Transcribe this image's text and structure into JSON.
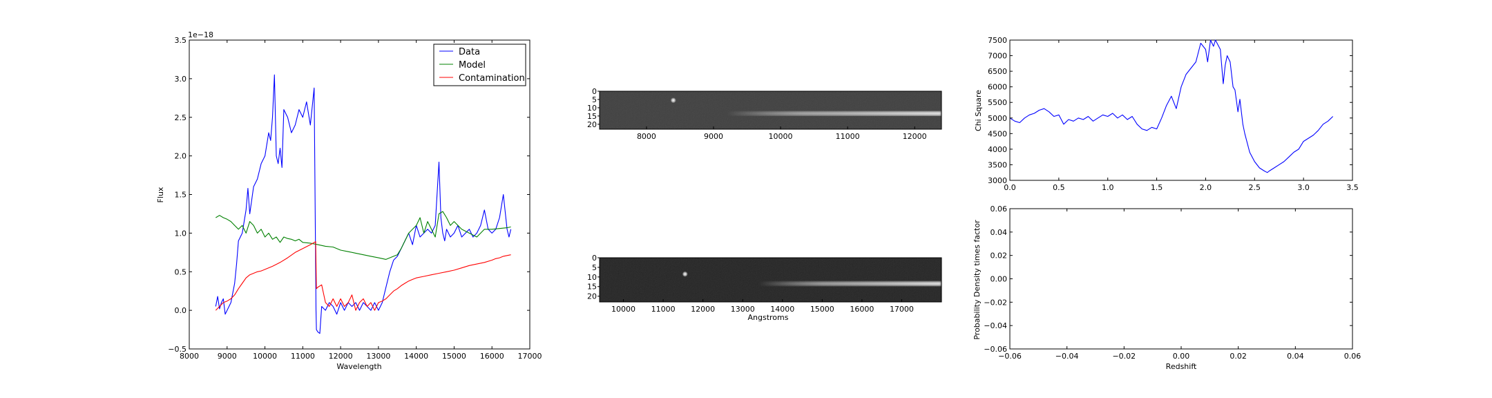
{
  "colors": {
    "data": "#0000ff",
    "model": "#008000",
    "contamination": "#ff0000",
    "axes": "#000000",
    "background": "#ffffff"
  },
  "chart_data": [
    {
      "id": "spectrum",
      "type": "line",
      "xlabel": "Wavelength",
      "ylabel": "Flux",
      "offset_text": "1e−18",
      "xlim": [
        8000,
        17000
      ],
      "ylim": [
        -0.5,
        3.5
      ],
      "xticks": [
        8000,
        9000,
        10000,
        11000,
        12000,
        13000,
        14000,
        15000,
        16000,
        17000
      ],
      "xtick_labels": [
        "8000",
        "9000",
        "10000",
        "11000",
        "12000",
        "13000",
        "14000",
        "15000",
        "16000",
        "17000"
      ],
      "yticks": [
        -0.5,
        0.0,
        0.5,
        1.0,
        1.5,
        2.0,
        2.5,
        3.0,
        3.5
      ],
      "ytick_labels": [
        "−0.5",
        "0.0",
        "0.5",
        "1.0",
        "1.5",
        "2.0",
        "2.5",
        "3.0",
        "3.5"
      ],
      "legend": {
        "placement": "top-right",
        "entries": [
          "Data",
          "Model",
          "Contamination"
        ]
      },
      "series": [
        {
          "name": "Data",
          "color": "#0000ff",
          "x": [
            8700,
            8750,
            8800,
            8850,
            8900,
            8950,
            9000,
            9100,
            9200,
            9250,
            9300,
            9400,
            9500,
            9550,
            9600,
            9700,
            9800,
            9900,
            10000,
            10100,
            10150,
            10200,
            10250,
            10300,
            10350,
            10400,
            10450,
            10500,
            10600,
            10700,
            10800,
            10900,
            11000,
            11100,
            11200,
            11300,
            11350,
            11360,
            11400,
            11450,
            11500,
            11600,
            11700,
            11800,
            11900,
            12000,
            12100,
            12200,
            12300,
            12400,
            12500,
            12600,
            12700,
            12800,
            12900,
            13000,
            13100,
            13200,
            13300,
            13400,
            13500,
            13600,
            13700,
            13800,
            13900,
            14000,
            14100,
            14200,
            14300,
            14400,
            14500,
            14600,
            14650,
            14700,
            14750,
            14800,
            14900,
            15000,
            15100,
            15200,
            15300,
            15400,
            15500,
            15600,
            15700,
            15800,
            15900,
            16000,
            16100,
            16200,
            16300,
            16400,
            16450,
            16500
          ],
          "y": [
            0.05,
            0.18,
            0.02,
            0.1,
            0.15,
            -0.05,
            0.0,
            0.1,
            0.35,
            0.6,
            0.9,
            1.0,
            1.3,
            1.58,
            1.25,
            1.6,
            1.7,
            1.9,
            2.0,
            2.3,
            2.2,
            2.5,
            3.05,
            2.0,
            1.9,
            2.1,
            1.85,
            2.6,
            2.5,
            2.3,
            2.4,
            2.6,
            2.5,
            2.7,
            2.4,
            2.88,
            0.0,
            -0.25,
            -0.28,
            -0.3,
            0.05,
            0.0,
            0.1,
            0.05,
            -0.05,
            0.1,
            0.0,
            0.1,
            0.05,
            0.1,
            0.0,
            0.1,
            0.05,
            0.0,
            0.1,
            0.0,
            0.1,
            0.3,
            0.5,
            0.65,
            0.7,
            0.8,
            0.9,
            1.0,
            0.85,
            1.1,
            0.95,
            1.0,
            1.05,
            1.0,
            1.1,
            1.92,
            1.2,
            1.0,
            0.9,
            1.05,
            0.95,
            1.0,
            1.1,
            0.95,
            1.0,
            1.05,
            0.95,
            1.0,
            1.1,
            1.3,
            1.05,
            1.0,
            1.05,
            1.2,
            1.5,
            1.05,
            0.95,
            1.05
          ]
        },
        {
          "name": "Model",
          "color": "#008000",
          "x": [
            8700,
            8800,
            8900,
            9000,
            9100,
            9200,
            9300,
            9400,
            9500,
            9600,
            9700,
            9800,
            9900,
            10000,
            10100,
            10200,
            10300,
            10400,
            10500,
            10600,
            10700,
            10800,
            10900,
            11000,
            11200,
            11400,
            11600,
            11800,
            12000,
            12200,
            12400,
            12600,
            12800,
            13000,
            13200,
            13400,
            13500,
            13600,
            13700,
            13800,
            13900,
            14000,
            14100,
            14200,
            14300,
            14400,
            14500,
            14600,
            14700,
            14800,
            14900,
            15000,
            15200,
            15400,
            15600,
            15800,
            16000,
            16200,
            16400,
            16500
          ],
          "y": [
            1.2,
            1.23,
            1.2,
            1.18,
            1.15,
            1.1,
            1.05,
            1.1,
            1.0,
            1.15,
            1.1,
            1.0,
            1.05,
            0.95,
            1.0,
            0.92,
            0.95,
            0.88,
            0.95,
            0.93,
            0.92,
            0.9,
            0.92,
            0.88,
            0.87,
            0.85,
            0.83,
            0.82,
            0.78,
            0.76,
            0.74,
            0.72,
            0.7,
            0.68,
            0.66,
            0.7,
            0.72,
            0.8,
            0.9,
            1.0,
            1.05,
            1.1,
            1.2,
            1.0,
            1.15,
            1.05,
            0.95,
            1.25,
            1.28,
            1.2,
            1.1,
            1.15,
            1.05,
            1.0,
            0.95,
            1.05,
            1.05,
            1.06,
            1.07,
            1.08
          ]
        },
        {
          "name": "Contamination",
          "color": "#ff0000",
          "x": [
            8700,
            8800,
            8900,
            9000,
            9100,
            9200,
            9300,
            9400,
            9500,
            9600,
            9700,
            9800,
            9900,
            10000,
            10200,
            10400,
            10600,
            10800,
            11000,
            11200,
            11340,
            11360,
            11400,
            11500,
            11600,
            11700,
            11800,
            11900,
            12000,
            12100,
            12200,
            12300,
            12400,
            12500,
            12600,
            12700,
            12800,
            12900,
            13000,
            13100,
            13200,
            13300,
            13400,
            13500,
            13600,
            13700,
            13800,
            13900,
            14000,
            14200,
            14400,
            14600,
            14800,
            15000,
            15200,
            15400,
            15600,
            15800,
            16000,
            16100,
            16200,
            16300,
            16400,
            16500
          ],
          "y": [
            0.0,
            0.05,
            0.1,
            0.12,
            0.15,
            0.2,
            0.28,
            0.35,
            0.42,
            0.46,
            0.48,
            0.5,
            0.51,
            0.53,
            0.57,
            0.62,
            0.68,
            0.75,
            0.8,
            0.85,
            0.89,
            0.28,
            0.3,
            0.33,
            0.1,
            0.05,
            0.15,
            0.05,
            0.15,
            0.05,
            0.1,
            0.2,
            0.0,
            0.1,
            0.15,
            0.05,
            0.1,
            0.0,
            0.1,
            0.12,
            0.15,
            0.2,
            0.25,
            0.28,
            0.32,
            0.35,
            0.38,
            0.4,
            0.42,
            0.44,
            0.46,
            0.48,
            0.5,
            0.52,
            0.55,
            0.58,
            0.6,
            0.62,
            0.65,
            0.67,
            0.68,
            0.7,
            0.71,
            0.72
          ]
        }
      ]
    },
    {
      "id": "image1",
      "type": "heatmap",
      "xticks": [
        8000,
        9000,
        10000,
        11000,
        12000
      ],
      "xtick_labels": [
        "8000",
        "9000",
        "10000",
        "11000",
        "12000"
      ],
      "yticks": [
        0,
        5,
        10,
        15,
        20
      ],
      "ytick_labels": [
        "0",
        "5",
        "10",
        "15",
        "20"
      ],
      "xlim": [
        7300,
        12400
      ],
      "ylim": [
        0,
        23
      ],
      "trace": {
        "start": 9200,
        "end": 12400,
        "row": 13
      },
      "spots": [
        {
          "x": 8400,
          "row": 5
        }
      ]
    },
    {
      "id": "image2",
      "type": "heatmap",
      "xlabel": "Angstroms",
      "xticks": [
        10000,
        11000,
        12000,
        13000,
        14000,
        15000,
        16000,
        17000
      ],
      "xtick_labels": [
        "10000",
        "11000",
        "12000",
        "13000",
        "14000",
        "15000",
        "16000",
        "17000"
      ],
      "yticks": [
        0,
        5,
        10,
        15,
        20
      ],
      "ytick_labels": [
        "0",
        "5",
        "10",
        "15",
        "20"
      ],
      "xlim": [
        9400,
        18000
      ],
      "ylim": [
        0,
        23
      ],
      "trace": {
        "start": 13400,
        "end": 18000,
        "row": 13
      },
      "spots": [
        {
          "x": 11550,
          "row": 8
        }
      ]
    },
    {
      "id": "chisq",
      "type": "line",
      "ylabel": "Chi Square",
      "xlim": [
        0.0,
        3.5
      ],
      "ylim": [
        3000,
        7500
      ],
      "xticks": [
        0.0,
        0.5,
        1.0,
        1.5,
        2.0,
        2.5,
        3.0,
        3.5
      ],
      "xtick_labels": [
        "0.0",
        "0.5",
        "1.0",
        "1.5",
        "2.0",
        "2.5",
        "3.0",
        "3.5"
      ],
      "yticks": [
        3000,
        3500,
        4000,
        4500,
        5000,
        5500,
        6000,
        6500,
        7000,
        7500
      ],
      "ytick_labels": [
        "3000",
        "3500",
        "4000",
        "4500",
        "5000",
        "5500",
        "6000",
        "6500",
        "7000",
        "7500"
      ],
      "series": [
        {
          "name": "",
          "color": "#0000ff",
          "x": [
            0.0,
            0.05,
            0.1,
            0.15,
            0.2,
            0.25,
            0.3,
            0.35,
            0.4,
            0.45,
            0.5,
            0.55,
            0.6,
            0.65,
            0.7,
            0.75,
            0.8,
            0.85,
            0.9,
            0.95,
            1.0,
            1.05,
            1.1,
            1.15,
            1.2,
            1.25,
            1.3,
            1.35,
            1.4,
            1.45,
            1.5,
            1.55,
            1.6,
            1.65,
            1.7,
            1.75,
            1.8,
            1.85,
            1.9,
            1.95,
            2.0,
            2.02,
            2.05,
            2.08,
            2.1,
            2.15,
            2.18,
            2.2,
            2.22,
            2.25,
            2.28,
            2.3,
            2.33,
            2.35,
            2.38,
            2.4,
            2.45,
            2.5,
            2.55,
            2.6,
            2.63,
            2.65,
            2.7,
            2.75,
            2.8,
            2.85,
            2.9,
            2.95,
            3.0,
            3.05,
            3.1,
            3.15,
            3.2,
            3.25,
            3.3
          ],
          "y": [
            5000,
            4900,
            4850,
            5000,
            5100,
            5150,
            5250,
            5300,
            5200,
            5050,
            5100,
            4800,
            4950,
            4900,
            5000,
            4950,
            5050,
            4900,
            5000,
            5100,
            5050,
            5150,
            5000,
            5100,
            4950,
            5050,
            4800,
            4650,
            4600,
            4700,
            4650,
            5000,
            5400,
            5700,
            5300,
            6000,
            6400,
            6600,
            6800,
            7400,
            7200,
            6800,
            7500,
            7300,
            7500,
            7200,
            6100,
            6700,
            7000,
            6800,
            6000,
            5900,
            5200,
            5600,
            4800,
            4500,
            3900,
            3600,
            3400,
            3300,
            3250,
            3300,
            3400,
            3500,
            3600,
            3750,
            3900,
            4000,
            4250,
            4350,
            4450,
            4600,
            4800,
            4900,
            5050
          ]
        }
      ]
    },
    {
      "id": "prob",
      "type": "line",
      "xlabel": "Redshift",
      "ylabel": "Probability Density times factor",
      "xlim": [
        -0.06,
        0.06
      ],
      "ylim": [
        -0.06,
        0.06
      ],
      "xticks": [
        -0.06,
        -0.04,
        -0.02,
        0.0,
        0.02,
        0.04,
        0.06
      ],
      "xtick_labels": [
        "−0.06",
        "−0.04",
        "−0.02",
        "0.00",
        "0.02",
        "0.04",
        "0.06"
      ],
      "yticks": [
        -0.06,
        -0.04,
        -0.02,
        0.0,
        0.02,
        0.04,
        0.06
      ],
      "ytick_labels": [
        "−0.06",
        "−0.04",
        "−0.02",
        "0.00",
        "0.02",
        "0.04",
        "0.06"
      ],
      "series": []
    }
  ]
}
